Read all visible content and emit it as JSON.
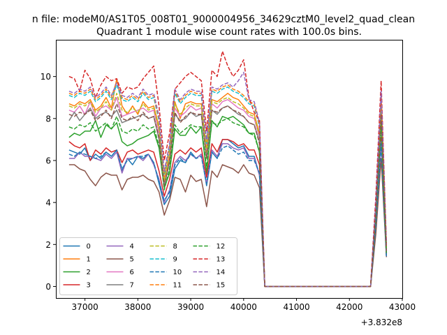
{
  "suptitle": "n file: modeM0/AS1T05_008T01_9000004956_34629cztM0_level2_quad_clean",
  "chart_data": {
    "type": "line",
    "title": "Quadrant 1 module wise count rates with 100.0s bins.",
    "xlabel": "",
    "ylabel": "",
    "x_offset_label": "+3.832e8",
    "xlim": [
      36450,
      43000
    ],
    "ylim": [
      -0.55,
      11.75
    ],
    "x_ticks": [
      37000,
      38000,
      39000,
      40000,
      41000,
      42000,
      43000
    ],
    "x_tick_labels": [
      "37000",
      "38000",
      "39000",
      "40000",
      "41000",
      "42000",
      "43000"
    ],
    "y_ticks": [
      0,
      2,
      4,
      6,
      8,
      10
    ],
    "y_tick_labels": [
      "0",
      "2",
      "4",
      "6",
      "8",
      "10"
    ],
    "grid": false,
    "legend": {
      "placement": "lower-left",
      "columns": 4
    },
    "x": [
      36700,
      36800,
      36900,
      37000,
      37100,
      37200,
      37300,
      37400,
      37500,
      37600,
      37700,
      37800,
      37900,
      38000,
      38100,
      38200,
      38300,
      38400,
      38500,
      38600,
      38700,
      38800,
      38900,
      39000,
      39100,
      39200,
      39300,
      39400,
      39500,
      39600,
      39700,
      39800,
      39900,
      40000,
      40100,
      40200,
      40300,
      40400,
      42300,
      42400,
      42500,
      42600,
      42700
    ],
    "series": [
      {
        "name": "0",
        "color": "#1f77b4",
        "style": "solid",
        "values": [
          6.5,
          6.4,
          6.3,
          6.6,
          6.0,
          6.3,
          6.1,
          6.4,
          6.2,
          6.5,
          5.5,
          6.1,
          5.8,
          6.2,
          6.1,
          6.3,
          5.9,
          4.9,
          3.9,
          4.3,
          5.6,
          6.0,
          5.9,
          6.4,
          6.1,
          6.3,
          4.8,
          6.4,
          6.1,
          7.0,
          7.0,
          6.8,
          6.6,
          6.7,
          6.2,
          6.2,
          5.3,
          0,
          0,
          0,
          3.0,
          7.0,
          1.4
        ]
      },
      {
        "name": "1",
        "color": "#ff7f0e",
        "style": "solid",
        "values": [
          8.7,
          8.6,
          8.8,
          8.7,
          8.9,
          8.4,
          8.6,
          9.0,
          8.5,
          9.9,
          8.6,
          8.2,
          8.6,
          8.2,
          8.8,
          8.5,
          8.6,
          7.6,
          5.1,
          6.3,
          8.8,
          8.0,
          8.7,
          8.8,
          8.7,
          8.7,
          6.5,
          8.9,
          8.8,
          9.0,
          9.2,
          9.0,
          8.9,
          8.6,
          8.3,
          8.2,
          7.3,
          0,
          0,
          0,
          3.8,
          8.8,
          1.8
        ]
      },
      {
        "name": "2",
        "color": "#2ca02c",
        "style": "solid",
        "values": [
          7.1,
          7.3,
          7.2,
          7.4,
          7.4,
          7.9,
          7.1,
          7.7,
          7.5,
          7.8,
          6.9,
          6.7,
          6.8,
          7.0,
          7.1,
          7.2,
          7.4,
          6.6,
          4.7,
          5.4,
          7.5,
          7.2,
          7.2,
          7.6,
          7.3,
          7.6,
          5.4,
          7.9,
          7.6,
          8.1,
          8.0,
          8.1,
          7.9,
          7.7,
          7.3,
          7.3,
          6.4,
          0,
          0,
          0,
          3.4,
          8.0,
          1.6
        ]
      },
      {
        "name": "3",
        "color": "#d62728",
        "style": "solid",
        "values": [
          6.9,
          6.7,
          6.6,
          6.8,
          6.0,
          6.5,
          6.3,
          6.6,
          6.4,
          6.5,
          5.9,
          6.4,
          6.5,
          6.3,
          6.4,
          6.5,
          6.4,
          5.5,
          4.3,
          5.1,
          6.3,
          6.5,
          6.3,
          6.6,
          6.4,
          6.6,
          5.2,
          6.8,
          6.4,
          7.0,
          7.0,
          6.9,
          6.7,
          6.8,
          6.5,
          6.5,
          5.8,
          0,
          0,
          0,
          3.1,
          7.1,
          1.5
        ]
      },
      {
        "name": "4",
        "color": "#9467bd",
        "style": "solid",
        "values": [
          6.1,
          6.1,
          6.4,
          6.2,
          6.2,
          6.1,
          6.0,
          6.3,
          6.1,
          6.4,
          5.4,
          6.1,
          6.1,
          6.2,
          6.0,
          6.3,
          5.8,
          5.1,
          4.0,
          4.6,
          5.9,
          6.2,
          6.0,
          6.3,
          6.1,
          6.3,
          4.9,
          6.5,
          6.2,
          6.8,
          6.8,
          6.6,
          6.5,
          6.6,
          6.1,
          6.1,
          5.3,
          0,
          0,
          0,
          2.9,
          6.9,
          1.4
        ]
      },
      {
        "name": "5",
        "color": "#8c564b",
        "style": "solid",
        "values": [
          5.8,
          5.8,
          5.6,
          5.5,
          5.1,
          4.8,
          5.2,
          5.4,
          5.3,
          5.3,
          4.6,
          5.1,
          5.2,
          5.2,
          5.3,
          5.1,
          5.0,
          4.5,
          3.4,
          4.1,
          5.2,
          5.1,
          4.5,
          5.3,
          5.0,
          5.1,
          3.8,
          5.5,
          5.2,
          5.8,
          5.7,
          5.6,
          5.4,
          5.8,
          5.4,
          5.3,
          4.7,
          0,
          0,
          0,
          2.5,
          6.1,
          1.4
        ]
      },
      {
        "name": "6",
        "color": "#e377c2",
        "style": "solid",
        "values": [
          8.4,
          8.3,
          8.6,
          8.2,
          8.8,
          8.1,
          8.5,
          8.6,
          8.4,
          9.0,
          8.1,
          8.2,
          8.3,
          8.4,
          8.5,
          8.3,
          8.4,
          7.3,
          4.9,
          6.1,
          8.5,
          8.1,
          8.3,
          8.6,
          8.4,
          8.5,
          6.3,
          8.7,
          8.5,
          8.8,
          8.9,
          8.7,
          8.5,
          8.4,
          8.1,
          8.0,
          7.1,
          0,
          0,
          0,
          3.6,
          8.5,
          1.7
        ]
      },
      {
        "name": "7",
        "color": "#7f7f7f",
        "style": "solid",
        "values": [
          7.9,
          8.3,
          7.9,
          8.2,
          8.5,
          8.0,
          8.2,
          8.3,
          8.1,
          8.4,
          7.8,
          7.9,
          8.0,
          8.1,
          8.2,
          8.0,
          8.1,
          7.0,
          4.8,
          5.9,
          8.2,
          7.9,
          8.0,
          8.3,
          8.1,
          8.2,
          6.1,
          8.4,
          8.2,
          8.5,
          8.6,
          8.4,
          8.2,
          8.1,
          7.8,
          7.7,
          6.9,
          0,
          0,
          0,
          3.5,
          8.2,
          1.7
        ]
      },
      {
        "name": "8",
        "color": "#bcbd22",
        "style": "dashed",
        "values": [
          8.6,
          8.5,
          8.7,
          8.6,
          8.8,
          8.3,
          8.5,
          8.8,
          8.4,
          9.2,
          8.4,
          8.3,
          8.5,
          8.3,
          8.7,
          8.4,
          8.5,
          7.5,
          5.0,
          6.2,
          8.7,
          8.2,
          8.5,
          8.7,
          8.6,
          8.6,
          6.4,
          8.8,
          8.7,
          8.9,
          9.0,
          8.8,
          8.7,
          8.5,
          8.2,
          8.1,
          7.2,
          0,
          0,
          0,
          3.7,
          8.6,
          1.8
        ]
      },
      {
        "name": "9",
        "color": "#17becf",
        "style": "dashed",
        "values": [
          9.1,
          9.0,
          9.2,
          9.1,
          9.3,
          8.8,
          9.0,
          9.3,
          8.9,
          9.6,
          8.9,
          8.8,
          9.0,
          8.8,
          9.2,
          8.9,
          9.0,
          7.9,
          5.3,
          6.6,
          9.2,
          8.7,
          9.0,
          9.2,
          9.1,
          9.1,
          6.8,
          9.3,
          9.2,
          9.4,
          9.5,
          9.3,
          9.2,
          9.0,
          8.7,
          8.6,
          7.6,
          0,
          0,
          0,
          3.9,
          9.1,
          1.9
        ]
      },
      {
        "name": "10",
        "color": "#1f77b4",
        "style": "dashed",
        "values": [
          6.3,
          6.2,
          6.4,
          6.3,
          6.2,
          6.1,
          6.2,
          6.4,
          6.2,
          6.5,
          5.6,
          6.0,
          6.1,
          6.2,
          6.2,
          6.3,
          5.9,
          5.0,
          4.1,
          4.5,
          5.8,
          6.1,
          5.9,
          6.3,
          6.1,
          6.2,
          4.9,
          6.4,
          6.1,
          6.6,
          6.7,
          6.5,
          6.3,
          6.4,
          6.0,
          6.0,
          5.4,
          0,
          0,
          0,
          2.9,
          6.8,
          1.4
        ]
      },
      {
        "name": "11",
        "color": "#ff7f0e",
        "style": "dashed",
        "values": [
          9.2,
          9.1,
          9.3,
          9.2,
          9.4,
          8.9,
          9.1,
          9.4,
          9.0,
          9.8,
          9.0,
          8.9,
          9.1,
          8.9,
          9.3,
          9.0,
          9.1,
          8.0,
          5.4,
          6.7,
          9.3,
          8.8,
          9.1,
          9.3,
          9.2,
          9.2,
          6.9,
          9.4,
          9.3,
          9.5,
          9.6,
          9.4,
          9.3,
          9.1,
          8.8,
          8.7,
          7.7,
          0,
          0,
          0,
          4.0,
          9.2,
          1.9
        ]
      },
      {
        "name": "12",
        "color": "#2ca02c",
        "style": "dashed",
        "values": [
          7.6,
          7.5,
          7.7,
          7.6,
          7.8,
          7.4,
          7.6,
          7.8,
          7.5,
          8.1,
          7.4,
          7.3,
          7.5,
          7.4,
          7.7,
          7.5,
          7.6,
          6.7,
          4.6,
          5.6,
          7.7,
          7.3,
          7.5,
          7.7,
          7.6,
          7.6,
          5.7,
          7.8,
          7.7,
          7.9,
          8.0,
          7.8,
          7.7,
          7.6,
          7.3,
          7.2,
          6.4,
          0,
          0,
          0,
          3.3,
          7.7,
          1.6
        ]
      },
      {
        "name": "13",
        "color": "#d62728",
        "style": "dashed",
        "values": [
          10.0,
          9.9,
          9.3,
          10.3,
          9.9,
          9.0,
          9.6,
          10.0,
          9.8,
          9.9,
          9.2,
          9.5,
          9.4,
          9.5,
          9.9,
          10.2,
          10.5,
          8.6,
          6.0,
          7.3,
          9.4,
          9.7,
          10.0,
          10.2,
          10.0,
          9.8,
          7.4,
          10.3,
          10.0,
          11.2,
          10.5,
          10.0,
          10.3,
          10.8,
          9.0,
          8.3,
          7.9,
          0,
          0,
          0,
          4.3,
          9.8,
          2.0
        ]
      },
      {
        "name": "14",
        "color": "#9467bd",
        "style": "dashed",
        "values": [
          9.3,
          9.2,
          9.4,
          9.3,
          9.5,
          9.0,
          9.2,
          9.5,
          9.1,
          9.7,
          9.1,
          9.0,
          9.2,
          9.0,
          9.4,
          9.1,
          9.2,
          8.1,
          5.5,
          6.8,
          9.4,
          8.9,
          9.2,
          9.4,
          9.3,
          9.3,
          7.0,
          9.5,
          9.4,
          9.6,
          9.7,
          9.5,
          9.8,
          10.2,
          8.9,
          8.8,
          7.8,
          0,
          0,
          0,
          4.0,
          9.3,
          2.0
        ]
      },
      {
        "name": "15",
        "color": "#8c564b",
        "style": "dashed",
        "values": [
          8.2,
          8.1,
          8.3,
          8.2,
          8.4,
          7.9,
          8.1,
          8.4,
          8.0,
          8.7,
          8.0,
          7.9,
          8.1,
          7.9,
          8.3,
          8.0,
          8.1,
          7.1,
          4.8,
          6.0,
          8.3,
          7.8,
          8.1,
          8.3,
          8.2,
          8.2,
          6.1,
          8.4,
          8.3,
          8.5,
          8.6,
          8.4,
          8.3,
          8.1,
          7.8,
          7.7,
          6.8,
          0,
          0,
          0,
          3.5,
          8.2,
          1.7
        ]
      }
    ]
  }
}
